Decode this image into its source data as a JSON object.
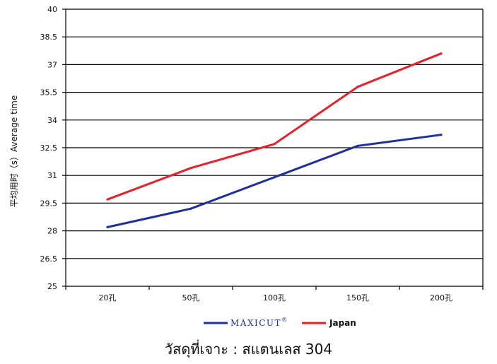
{
  "chart_data": {
    "type": "line",
    "categories": [
      "20孔",
      "50孔",
      "100孔",
      "150孔",
      "200孔"
    ],
    "series": [
      {
        "name": "MAXICUT",
        "trademark": "®",
        "color": "#1f2f9e",
        "values": [
          28.2,
          29.2,
          30.9,
          32.6,
          33.2
        ]
      },
      {
        "name": "Japan",
        "color": "#e8202a",
        "values": [
          29.7,
          31.4,
          32.7,
          35.8,
          37.6
        ]
      }
    ],
    "ylabel": "平均用时（s）Average time",
    "ylim": [
      25,
      40
    ],
    "yticks": [
      25,
      26.5,
      28,
      29.5,
      31,
      32.5,
      34,
      35.5,
      37,
      38.5,
      40
    ],
    "ytick_labels": [
      "25",
      "26.5",
      "28",
      "29.5",
      "31",
      "32.5",
      "34",
      "35.5",
      "37",
      "38.5",
      "40"
    ],
    "grid": "horizontal",
    "legend_position": "bottom-center"
  },
  "caption": "วัสดุที่เจาะ : สแตนเลส 304"
}
